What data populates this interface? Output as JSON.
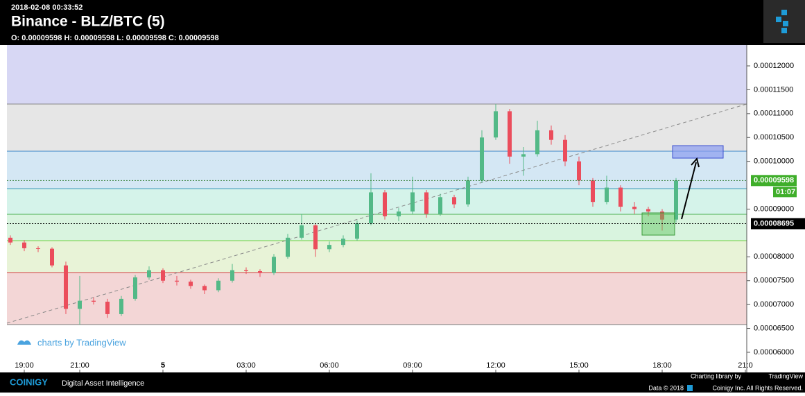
{
  "header": {
    "timestamp": "2018-02-08 00:33:52",
    "title": "Binance - BLZ/BTC (5)",
    "ohlc": "O: 0.00009598 H: 0.00009598 L: 0.00009598 C: 0.00009598"
  },
  "chart_data": {
    "type": "candlestick",
    "watermark": "charts by TradingView",
    "x": [
      -0.5,
      0,
      0.5,
      1,
      1.5,
      2,
      2.5,
      3,
      3.5,
      4,
      4.5,
      5,
      5.5,
      6,
      6.5,
      7,
      7.5,
      8,
      8.5,
      9,
      9.5,
      10,
      10.5,
      11,
      11.5,
      12,
      12.5,
      13,
      13.5,
      14,
      14.5,
      15,
      15.5,
      16,
      16.5,
      17,
      17.5,
      18,
      18.5,
      19,
      19.5,
      20,
      20.5,
      21,
      21.5,
      22,
      22.5,
      23,
      23.5
    ],
    "open": [
      8.4e-05,
      8.3e-05,
      8.18e-05,
      8.17e-05,
      7.82e-05,
      6.91e-05,
      7.08e-05,
      7.06e-05,
      6.8e-05,
      7.12e-05,
      7.57e-05,
      7.72e-05,
      7.5e-05,
      7.48e-05,
      7.39e-05,
      7.3e-05,
      7.5e-05,
      7.72e-05,
      7.7e-05,
      7.66e-05,
      8e-05,
      8.4e-05,
      8.66e-05,
      8.16e-05,
      8.25e-05,
      8.38e-05,
      8.7e-05,
      9.35e-05,
      8.85e-05,
      8.95e-05,
      9.35e-05,
      8.9e-05,
      9.25e-05,
      9.1e-05,
      9.6e-05,
      0.000105,
      0.0001105,
      0.000101,
      0.0001015,
      0.0001065,
      0.0001045,
      0.0001,
      9.6e-05,
      9.15e-05,
      9.45e-05,
      9.05e-05,
      9e-05,
      8.95e-05,
      8.78e-05
    ],
    "high": [
      8.45e-05,
      8.35e-05,
      8.22e-05,
      8.2e-05,
      7.9e-05,
      7.6e-05,
      7.15e-05,
      7.12e-05,
      7.18e-05,
      7.62e-05,
      7.8e-05,
      7.76e-05,
      7.6e-05,
      7.52e-05,
      7.42e-05,
      7.55e-05,
      7.85e-05,
      7.78e-05,
      7.74e-05,
      8.06e-05,
      8.48e-05,
      8.9e-05,
      8.7e-05,
      8.32e-05,
      8.45e-05,
      8.76e-05,
      9.75e-05,
      9.4e-05,
      9.02e-05,
      9.68e-05,
      9.4e-05,
      9.32e-05,
      9.3e-05,
      9.68e-05,
      0.0001065,
      0.000112,
      0.000111,
      0.000103,
      0.0001085,
      0.0001075,
      0.0001055,
      0.000101,
      9.65e-05,
      9.7e-05,
      9.5e-05,
      9.15e-05,
      9.05e-05,
      9e-05,
      9.65e-05
    ],
    "low": [
      8.25e-05,
      8.12e-05,
      8.1e-05,
      7.78e-05,
      6.8e-05,
      6.58e-05,
      7e-05,
      6.72e-05,
      6.76e-05,
      7.08e-05,
      7.52e-05,
      7.45e-05,
      7.4e-05,
      7.33e-05,
      7.22e-05,
      7.26e-05,
      7.46e-05,
      7.64e-05,
      7.58e-05,
      7.62e-05,
      7.96e-05,
      8.36e-05,
      8e-05,
      8.1e-05,
      8.2e-05,
      8.34e-05,
      8.66e-05,
      8.78e-05,
      8.75e-05,
      8.9e-05,
      8.82e-05,
      8.86e-05,
      9.02e-05,
      9.05e-05,
      9.55e-05,
      0.0001045,
      9.95e-05,
      9.7e-05,
      0.000101,
      0.0001035,
      9.9e-05,
      9.5e-05,
      9.05e-05,
      9.1e-05,
      8.95e-05,
      8.9e-05,
      8.85e-05,
      8.55e-05,
      8.72e-05
    ],
    "close": [
      8.3e-05,
      8.18e-05,
      8.17e-05,
      7.82e-05,
      6.91e-05,
      7.08e-05,
      7.06e-05,
      6.8e-05,
      7.12e-05,
      7.57e-05,
      7.72e-05,
      7.5e-05,
      7.48e-05,
      7.39e-05,
      7.3e-05,
      7.5e-05,
      7.72e-05,
      7.7e-05,
      7.66e-05,
      8e-05,
      8.4e-05,
      8.66e-05,
      8.16e-05,
      8.25e-05,
      8.38e-05,
      8.7e-05,
      9.35e-05,
      8.85e-05,
      8.95e-05,
      9.35e-05,
      8.9e-05,
      9.25e-05,
      9.1e-05,
      9.6e-05,
      0.000105,
      0.0001105,
      0.000101,
      0.0001015,
      0.0001065,
      0.0001045,
      0.0001,
      9.6e-05,
      9.15e-05,
      9.45e-05,
      9.05e-05,
      9e-05,
      8.95e-05,
      8.78e-05,
      9.598e-05
    ],
    "up_color": "#53b987",
    "down_color": "#eb4d5c",
    "xlim": [
      -0.625,
      26.05
    ],
    "xticks": [
      {
        "value": 0,
        "label": "19:00"
      },
      {
        "value": 2,
        "label": "21:00"
      },
      5,
      {
        "value": 8,
        "label": "03:00"
      },
      {
        "value": 11,
        "label": "06:00"
      },
      {
        "value": 14,
        "label": "09:00"
      },
      {
        "value": 17,
        "label": "12:00"
      },
      {
        "value": 20,
        "label": "15:00"
      },
      {
        "value": 23,
        "label": "18:00"
      },
      {
        "value": 26,
        "label": "21:0"
      }
    ],
    "ylim": [
      5.898e-05,
      0.00012436
    ],
    "yticks": [
      {
        "value": 0.00012,
        "label": "0.00012000"
      },
      {
        "value": 0.000115,
        "label": "0.00011500"
      },
      {
        "value": 0.00011,
        "label": "0.00011000"
      },
      {
        "value": 0.000105,
        "label": "0.00010500"
      },
      {
        "value": 0.0001,
        "label": "0.00010000"
      },
      {
        "value": 9e-05,
        "label": "0.00009000"
      },
      {
        "value": 8e-05,
        "label": "0.00008000"
      },
      {
        "value": 7.5e-05,
        "label": "0.00007500"
      },
      {
        "value": 7e-05,
        "label": "0.00007000"
      },
      {
        "value": 6.5e-05,
        "label": "0.00006500"
      },
      {
        "value": 6e-05,
        "label": "0.00006000"
      }
    ],
    "last_price": 9.598e-05,
    "countdown": "01:07",
    "marked_price": 8.695e-05
  },
  "footer": {
    "brand": "COINIGY",
    "tagline": "Digital Asset Intelligence",
    "charting": "Charting library by",
    "tradingview": "TradingView",
    "data": "Data © 2018",
    "rights": "Coinigy Inc. All Rights Reserved."
  }
}
